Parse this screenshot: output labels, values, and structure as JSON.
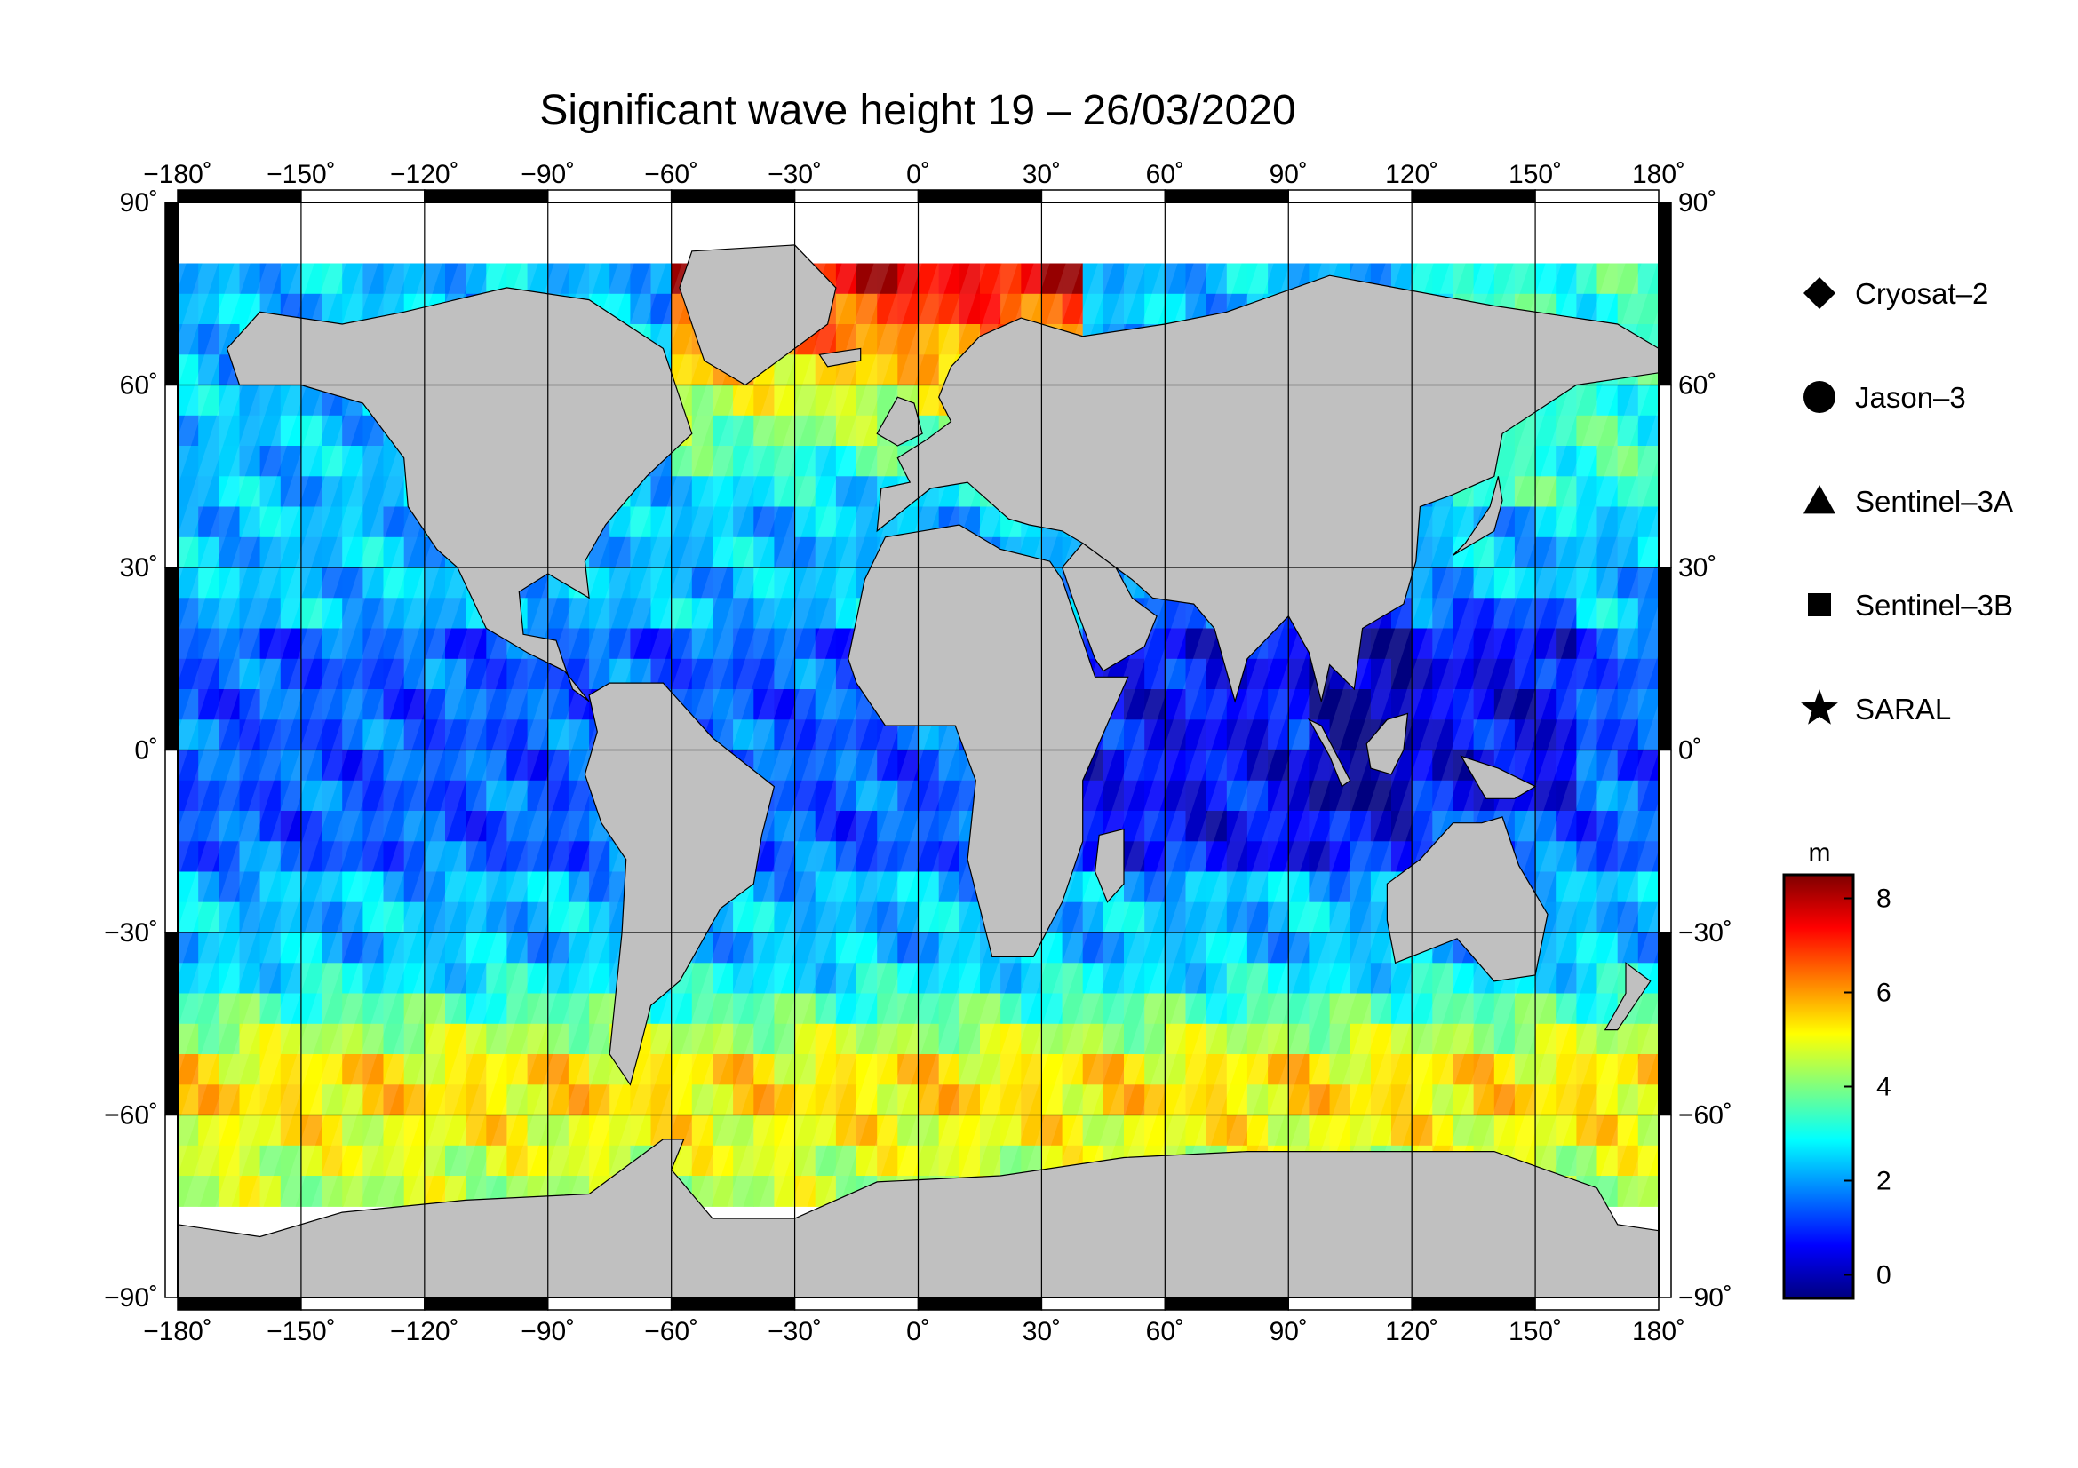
{
  "title": "Significant wave height 19 – 26/03/2020",
  "x_axis": {
    "range": [
      -180,
      180
    ],
    "ticks": [
      -180,
      -150,
      -120,
      -90,
      -60,
      -30,
      0,
      30,
      60,
      90,
      120,
      150,
      180
    ],
    "labels": [
      "−180˚",
      "−150˚",
      "−120˚",
      "−90˚",
      "−60˚",
      "−30˚",
      "0˚",
      "30˚",
      "60˚",
      "90˚",
      "120˚",
      "150˚",
      "180˚"
    ]
  },
  "y_axis": {
    "range": [
      -90,
      90
    ],
    "ticks": [
      90,
      60,
      30,
      0,
      -30,
      -60,
      -90
    ],
    "labels": [
      "90˚",
      "60˚",
      "30˚",
      "0˚",
      "−30˚",
      "−60˚",
      "−90˚"
    ]
  },
  "grid": true,
  "legend": {
    "placement": "right",
    "entries": [
      {
        "name": "Cryosat–2",
        "marker": "diamond-icon"
      },
      {
        "name": "Jason–3",
        "marker": "circle-icon"
      },
      {
        "name": "Sentinel–3A",
        "marker": "triangle-icon"
      },
      {
        "name": "Sentinel–3B",
        "marker": "square-icon"
      },
      {
        "name": "SARAL",
        "marker": "star-icon"
      }
    ]
  },
  "colorbar": {
    "unit": "m",
    "range": [
      -0.5,
      8.5
    ],
    "ticks": [
      0,
      2,
      4,
      6,
      8
    ],
    "tick_labels": [
      "0",
      "2",
      "4",
      "6",
      "8"
    ],
    "colors": [
      "#00007f",
      "#0000ff",
      "#007fff",
      "#00ffff",
      "#7fff7f",
      "#ffff00",
      "#ff7f00",
      "#ff0000",
      "#7f0000"
    ]
  },
  "colors": {
    "land": "#c0c0c0",
    "ice": "#ffffff",
    "coastline": "#000000"
  }
}
